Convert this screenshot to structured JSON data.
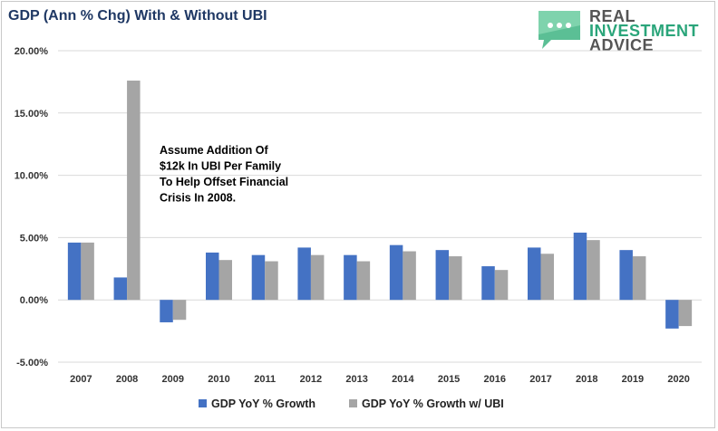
{
  "chart_data": {
    "type": "bar",
    "title": "GDP (Ann % Chg) With & Without UBI",
    "categories": [
      "2007",
      "2008",
      "2009",
      "2010",
      "2011",
      "2012",
      "2013",
      "2014",
      "2015",
      "2016",
      "2017",
      "2018",
      "2019",
      "2020"
    ],
    "series": [
      {
        "name": "GDP YoY % Growth",
        "color": "#4472c4",
        "values": [
          4.6,
          1.8,
          -1.8,
          3.8,
          3.6,
          4.2,
          3.6,
          4.4,
          4.0,
          2.7,
          4.2,
          5.4,
          4.0,
          -2.3
        ]
      },
      {
        "name": "GDP YoY % Growth w/ UBI",
        "color": "#a5a5a5",
        "values": [
          4.6,
          17.6,
          -1.6,
          3.2,
          3.1,
          3.6,
          3.1,
          3.9,
          3.5,
          2.4,
          3.7,
          4.8,
          3.5,
          -2.1
        ]
      }
    ],
    "ylim": [
      -5,
      20
    ],
    "yticks": [
      "-5.00%",
      "0.00%",
      "5.00%",
      "10.00%",
      "15.00%",
      "20.00%"
    ],
    "ytick_values": [
      -5,
      0,
      5,
      10,
      15,
      20
    ],
    "grid": true,
    "legend_position": "bottom",
    "annotation": [
      "Assume Addition Of",
      "$12k In UBI Per Family",
      "To Help Offset Financial",
      "Crisis In 2008."
    ]
  },
  "logo": {
    "line1": "REAL",
    "line2": "INVESTMENT",
    "line3": "ADVICE",
    "color": "#2aa57a"
  }
}
